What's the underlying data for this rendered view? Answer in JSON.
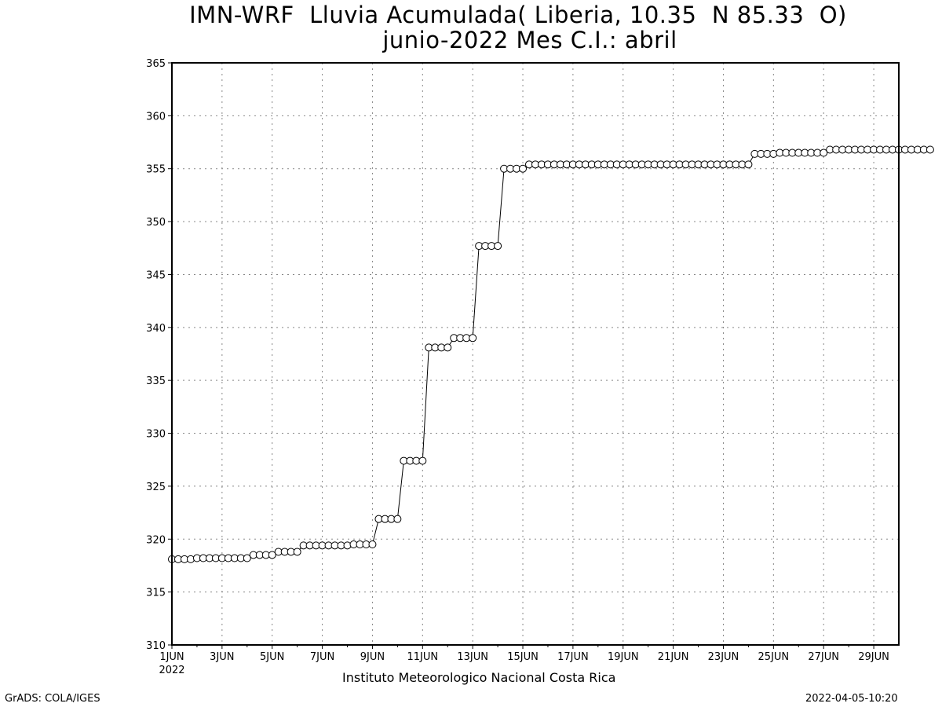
{
  "chart_data": {
    "type": "line",
    "title": "IMN-WRF  Lluvia Acumulada( Liberia, 10.35  N 85.33  O)",
    "subtitle": "junio-2022 Mes C.I.: abril",
    "xlabel": "",
    "ylabel": "",
    "ylim": [
      310,
      365
    ],
    "yticks": [
      310,
      315,
      320,
      325,
      330,
      335,
      340,
      345,
      350,
      355,
      360,
      365
    ],
    "xlim_days": [
      1,
      30
    ],
    "xtick_labels": [
      "1JUN",
      "3JUN",
      "5JUN",
      "7JUN",
      "9JUN",
      "11JUN",
      "13JUN",
      "15JUN",
      "17JUN",
      "19JUN",
      "21JUN",
      "23JUN",
      "25JUN",
      "27JUN",
      "29JUN"
    ],
    "xtick_year": "2022",
    "grid": true,
    "marker": "open-circle",
    "series": [
      {
        "values": [
          318.1,
          318.1,
          318.1,
          318.1,
          318.2,
          318.2,
          318.2,
          318.2,
          318.2,
          318.2,
          318.2,
          318.2,
          318.2,
          318.5,
          318.5,
          318.5,
          318.5,
          318.8,
          318.8,
          318.8,
          318.8,
          319.4,
          319.4,
          319.4,
          319.4,
          319.4,
          319.4,
          319.4,
          319.4,
          319.5,
          319.5,
          319.5,
          319.5,
          321.9,
          321.9,
          321.9,
          321.9,
          327.4,
          327.4,
          327.4,
          327.4,
          338.1,
          338.1,
          338.1,
          338.1,
          339.0,
          339.0,
          339.0,
          339.0,
          347.7,
          347.7,
          347.7,
          347.7,
          355.0,
          355.0,
          355.0,
          355.0,
          355.4,
          355.4,
          355.4,
          355.4,
          355.4,
          355.4,
          355.4,
          355.4,
          355.4,
          355.4,
          355.4,
          355.4,
          355.4,
          355.4,
          355.4,
          355.4,
          355.4,
          355.4,
          355.4,
          355.4,
          355.4,
          355.4,
          355.4,
          355.4,
          355.4,
          355.4,
          355.4,
          355.4,
          355.4,
          355.4,
          355.4,
          355.4,
          355.4,
          355.4,
          355.4,
          355.4,
          356.4,
          356.4,
          356.4,
          356.4,
          356.5,
          356.5,
          356.5,
          356.5,
          356.5,
          356.5,
          356.5,
          356.5,
          356.8,
          356.8,
          356.8,
          356.8,
          356.8,
          356.8,
          356.8,
          356.8,
          356.8,
          356.8,
          356.8,
          356.8,
          356.8,
          356.8,
          356.8,
          356.8,
          356.8
        ]
      }
    ],
    "x_step_days": 0.25
  },
  "footer": {
    "institution": "Instituto Meteorologico Nacional Costa Rica",
    "software": "GrADS: COLA/IGES",
    "timestamp": "2022-04-05-10:20"
  }
}
